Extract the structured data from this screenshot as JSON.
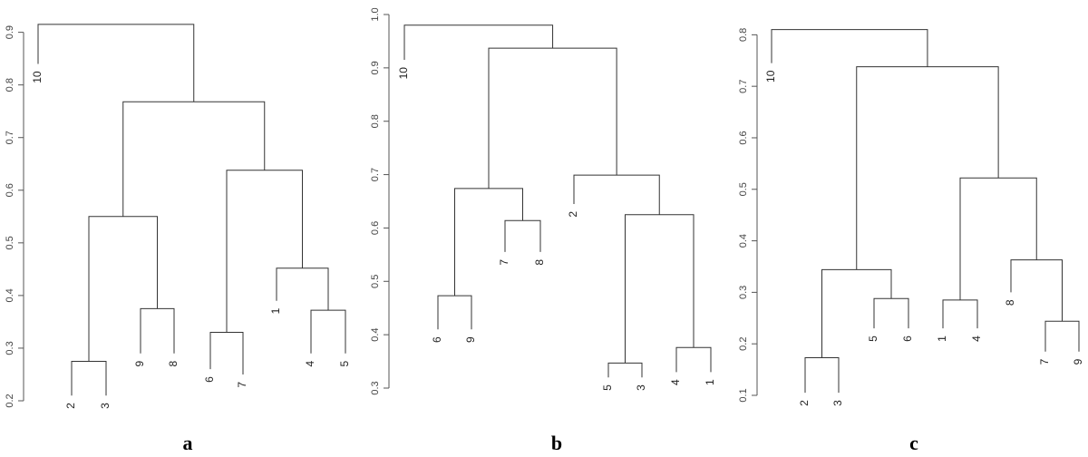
{
  "chart_data": [
    {
      "type": "dendrogram",
      "panel_label": "a",
      "ylim": [
        0.2,
        0.92
      ],
      "y_ticks": [
        0.2,
        0.3,
        0.4,
        0.5,
        0.6,
        0.7,
        0.8,
        0.9
      ],
      "leaf_order": [
        "2",
        "3",
        "9",
        "8",
        "6",
        "7",
        "1",
        "4",
        "5",
        "10"
      ],
      "leaf_bottoms": {
        "10": 0.84,
        "2": 0.21,
        "3": 0.21,
        "9": 0.29,
        "8": 0.29,
        "6": 0.26,
        "7": 0.25,
        "1": 0.39,
        "4": 0.29,
        "5": 0.29
      },
      "merges": [
        {
          "left": "2",
          "right": "3",
          "height": 0.275
        },
        {
          "left": "9",
          "right": "8",
          "height": 0.375
        },
        {
          "left": "6",
          "right": "7",
          "height": 0.33
        },
        {
          "left": "4",
          "right": "5",
          "height": 0.372
        },
        {
          "left": "1",
          "right": "4+5",
          "height": 0.452
        },
        {
          "left": "6+7",
          "right": "1+4+5",
          "height": 0.638
        },
        {
          "left": "2+3",
          "right": "9+8",
          "height": 0.55
        },
        {
          "left": "2+3+9+8",
          "right": "6+7+1+4+5",
          "height": 0.768
        },
        {
          "left": "10",
          "right": "rest",
          "height": 0.915
        }
      ]
    },
    {
      "type": "dendrogram",
      "panel_label": "b",
      "ylim": [
        0.3,
        1.0
      ],
      "y_ticks": [
        0.3,
        0.4,
        0.5,
        0.6,
        0.7,
        0.8,
        0.9,
        1.0
      ],
      "leaf_order": [
        "10",
        "6",
        "9",
        "7",
        "8",
        "2",
        "5",
        "3",
        "4",
        "1"
      ],
      "leaf_bottoms": {
        "10": 0.915,
        "6": 0.41,
        "9": 0.41,
        "7": 0.555,
        "8": 0.555,
        "2": 0.645,
        "5": 0.32,
        "3": 0.32,
        "4": 0.33,
        "1": 0.33
      },
      "merges": [
        {
          "left": "6",
          "right": "9",
          "height": 0.473
        },
        {
          "left": "7",
          "right": "8",
          "height": 0.614
        },
        {
          "left": "6+9",
          "right": "7+8",
          "height": 0.674
        },
        {
          "left": "5",
          "right": "3",
          "height": 0.347
        },
        {
          "left": "4",
          "right": "1",
          "height": 0.376
        },
        {
          "left": "5+3",
          "right": "4+1",
          "height": 0.625
        },
        {
          "left": "2",
          "right": "5+3+4+1",
          "height": 0.699
        },
        {
          "left": "6+9+7+8",
          "right": "2+5+3+4+1",
          "height": 0.937
        },
        {
          "left": "10",
          "right": "rest",
          "height": 0.98
        }
      ]
    },
    {
      "type": "dendrogram",
      "panel_label": "c",
      "ylim": [
        0.1,
        0.82
      ],
      "y_ticks": [
        0.1,
        0.2,
        0.3,
        0.4,
        0.5,
        0.6,
        0.7,
        0.8
      ],
      "leaf_order": [
        "10",
        "2",
        "3",
        "5",
        "6",
        "1",
        "4",
        "8",
        "7",
        "9"
      ],
      "leaf_bottoms": {
        "10": 0.745,
        "2": 0.105,
        "3": 0.105,
        "5": 0.23,
        "6": 0.23,
        "1": 0.23,
        "4": 0.23,
        "8": 0.3,
        "7": 0.185,
        "9": 0.185
      },
      "merges": [
        {
          "left": "2",
          "right": "3",
          "height": 0.173
        },
        {
          "left": "5",
          "right": "6",
          "height": 0.288
        },
        {
          "left": "2+3",
          "right": "5+6",
          "height": 0.344
        },
        {
          "left": "1",
          "right": "4",
          "height": 0.285
        },
        {
          "left": "7",
          "right": "9",
          "height": 0.244
        },
        {
          "left": "8",
          "right": "7+9",
          "height": 0.363
        },
        {
          "left": "1+4",
          "right": "8+7+9",
          "height": 0.522
        },
        {
          "left": "2+3+5+6",
          "right": "1+4+8+7+9",
          "height": 0.738
        },
        {
          "left": "10",
          "right": "rest",
          "height": 0.81
        }
      ]
    }
  ]
}
